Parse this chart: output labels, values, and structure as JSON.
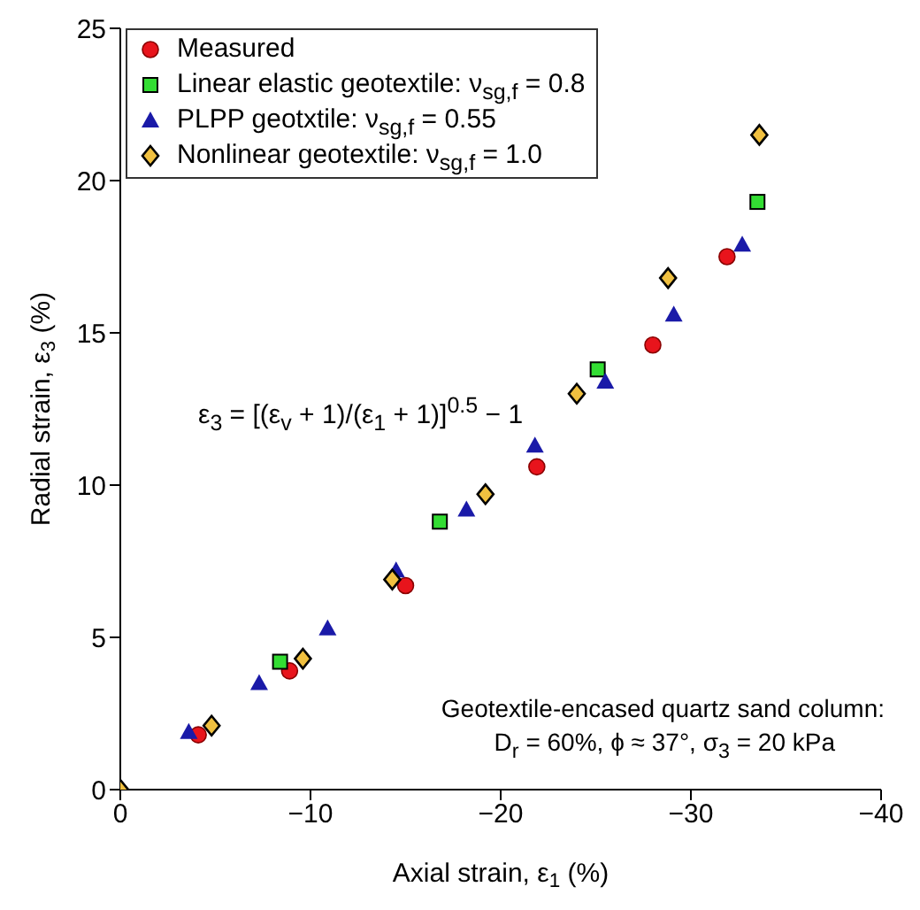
{
  "chart_data": {
    "type": "scatter",
    "xlabel": "Axial strain, ε$_{1}$ (%)",
    "ylabel": "Radial strain, ε$_{3}$ (%)",
    "xlim": [
      0,
      -40
    ],
    "xticks": [
      0,
      {
        "value": -10,
        "label": "−10"
      },
      {
        "value": -20,
        "label": "−20"
      },
      {
        "value": -30,
        "label": "−30"
      },
      {
        "value": -40,
        "label": "−40"
      }
    ],
    "ylim": [
      0,
      25
    ],
    "yticks": [
      0,
      5,
      10,
      15,
      20,
      25
    ],
    "grid": false,
    "legend": "top left",
    "annotations": [
      "ε$_{3}$ = [(ε$_{v}$ + 1)/(ε$_{1}$ + 1)]$^{0.5}$ − 1",
      "Geotextile-encased quartz sand column:",
      "D$_{r}$ = 60%, ϕ ≈ 37°, σ$_{3}$ = 20 kPa"
    ],
    "series": [
      {
        "name": "Measured",
        "color": "#e8141c",
        "marker": "circle",
        "x": [
          -4.1,
          -8.9,
          -15.0,
          -21.9,
          -28.0,
          -31.9
        ],
        "values": [
          1.8,
          3.9,
          6.7,
          10.6,
          14.6,
          17.5
        ]
      },
      {
        "name": "Linear elastic geotextile: ν$_{sg,f}$ = 0.8",
        "color": "#33dd33",
        "marker": "square",
        "x": [
          -8.4,
          -16.8,
          -25.1,
          -33.5
        ],
        "values": [
          4.2,
          8.8,
          13.8,
          19.3
        ]
      },
      {
        "name": "PLPP geotxtile: ν$_{sg,f}$ = 0.55",
        "color": "#1a1aa8",
        "marker": "triangle",
        "x": [
          -3.6,
          -7.3,
          -10.9,
          -14.5,
          -18.2,
          -21.8,
          -25.5,
          -29.1,
          -32.7
        ],
        "values": [
          1.9,
          3.5,
          5.3,
          7.2,
          9.2,
          11.3,
          13.4,
          15.6,
          17.9
        ]
      },
      {
        "name": "Nonlinear geotextile: ν$_{sg,f}$ = 1.0",
        "color": "#f0c040",
        "marker": "diamond",
        "x": [
          0,
          -4.8,
          -9.6,
          -14.3,
          -19.2,
          -24.0,
          -28.8,
          -33.6
        ],
        "values": [
          0,
          2.1,
          4.3,
          6.9,
          9.7,
          13.0,
          16.8,
          21.5
        ]
      }
    ]
  }
}
